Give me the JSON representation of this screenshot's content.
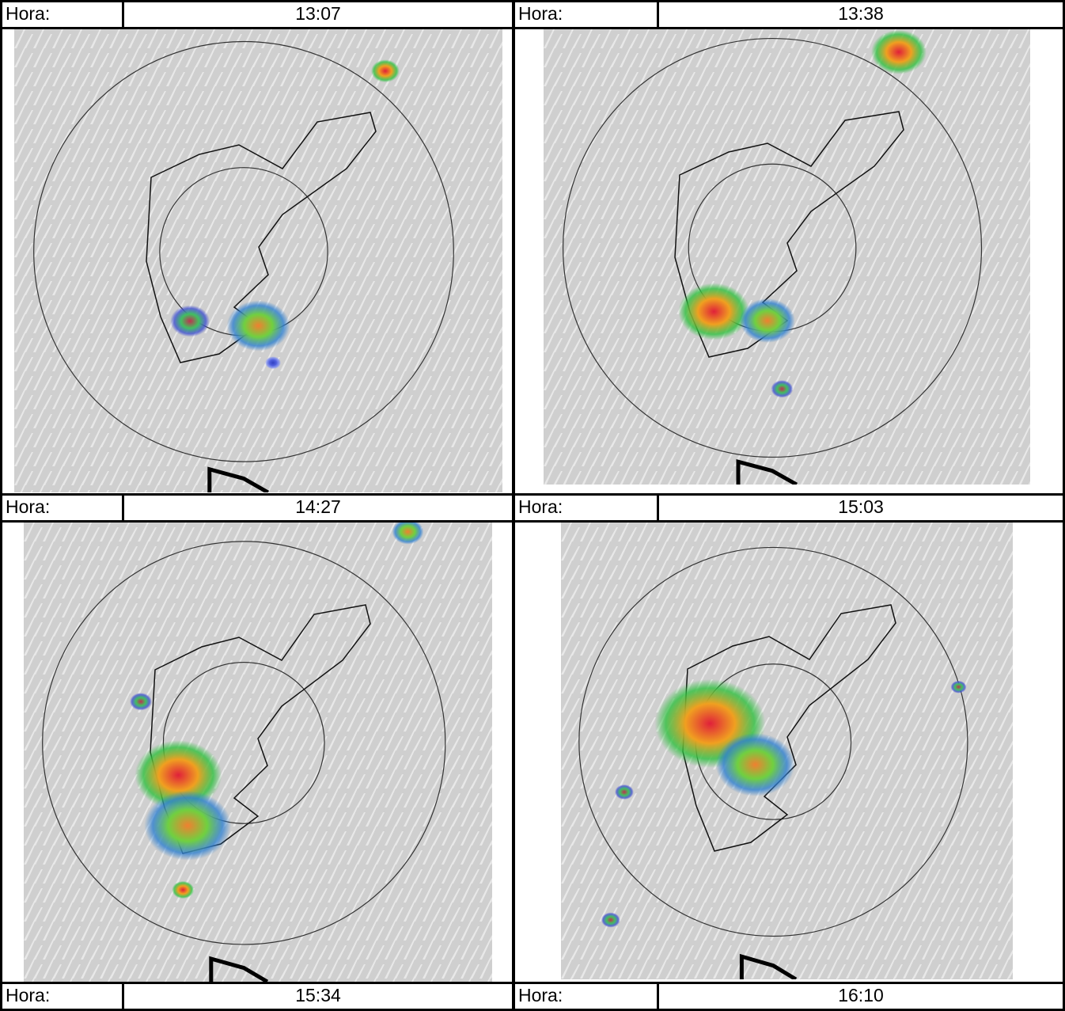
{
  "table": {
    "rows": [
      [
        {
          "label": "Hora:",
          "time": "13:07"
        },
        {
          "label": "Hora:",
          "time": "13:38"
        }
      ],
      [
        {
          "label": "Hora:",
          "time": "14:27"
        },
        {
          "label": "Hora:",
          "time": "15:03"
        }
      ],
      [
        {
          "label": "Hora:",
          "time": "15:34"
        },
        {
          "label": "Hora:",
          "time": "16:10"
        }
      ]
    ]
  }
}
